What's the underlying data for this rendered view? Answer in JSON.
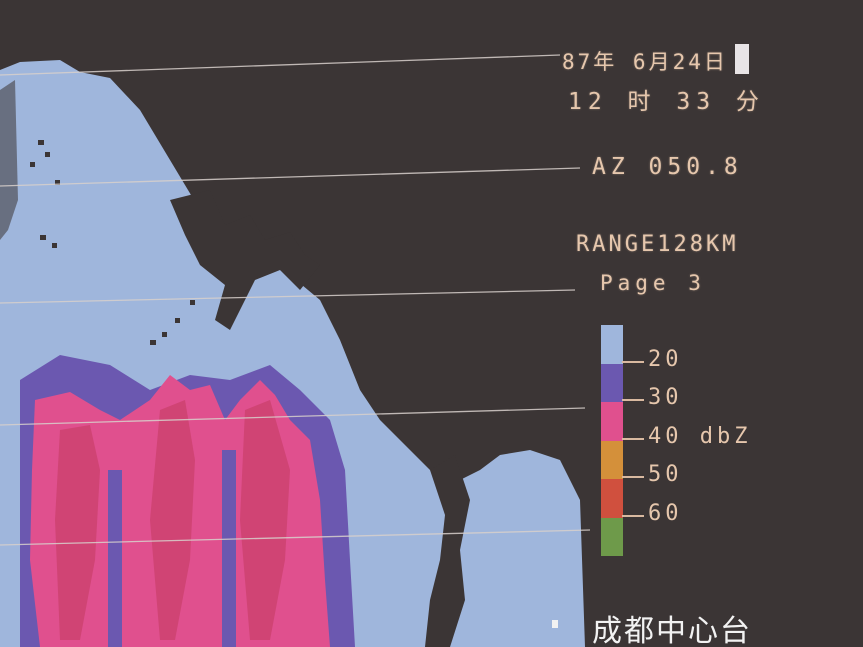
{
  "display": {
    "date": "87年 6月24日",
    "time": "12 时 33 分",
    "azimuth": "AZ 050.8",
    "range": "RANGE128KM",
    "page": "Page 3",
    "station": "成都中心台"
  },
  "legend": {
    "unit": "dbZ",
    "levels": [
      {
        "label": "20",
        "color": "#9fb6dc"
      },
      {
        "label": "30",
        "color": "#6b58b0"
      },
      {
        "label": "40",
        "color": "#e0508e"
      },
      {
        "label": "50",
        "color": "#d4903a"
      },
      {
        "label": "60",
        "color": "#d0503e"
      },
      {
        "label": "",
        "color": "#6e9a4a"
      }
    ]
  },
  "colors": {
    "background": "#3b3535",
    "low_echo": "#9fb6dc",
    "mid_echo": "#6b58b0",
    "high_echo": "#e0508e",
    "text": "#e6c7ad"
  }
}
